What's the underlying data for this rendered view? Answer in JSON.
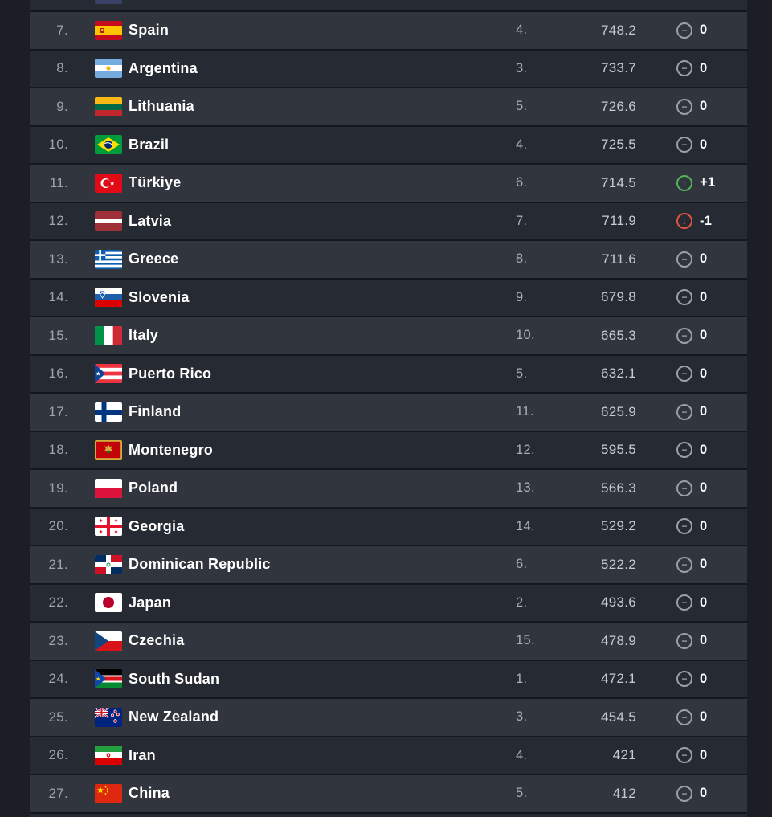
{
  "table": {
    "columns": [
      "world_rank",
      "flag",
      "country",
      "zone_rank",
      "points",
      "change"
    ],
    "change_colors": {
      "same": "#9AA0A7",
      "up": "#50B457",
      "down": "#DC5540"
    },
    "row_colors": {
      "light": "#31353E",
      "dark": "#262A32"
    },
    "partial_top_row": {
      "flag": "australia-sliver"
    },
    "rows": [
      {
        "rank": "7.",
        "flag": "spain",
        "country": "Spain",
        "zone_rank": "4.",
        "points": "748.2",
        "change": "0",
        "direction": "same"
      },
      {
        "rank": "8.",
        "flag": "argentina",
        "country": "Argentina",
        "zone_rank": "3.",
        "points": "733.7",
        "change": "0",
        "direction": "same"
      },
      {
        "rank": "9.",
        "flag": "lithuania",
        "country": "Lithuania",
        "zone_rank": "5.",
        "points": "726.6",
        "change": "0",
        "direction": "same"
      },
      {
        "rank": "10.",
        "flag": "brazil",
        "country": "Brazil",
        "zone_rank": "4.",
        "points": "725.5",
        "change": "0",
        "direction": "same"
      },
      {
        "rank": "11.",
        "flag": "turkiye",
        "country": "Türkiye",
        "zone_rank": "6.",
        "points": "714.5",
        "change": "+1",
        "direction": "up"
      },
      {
        "rank": "12.",
        "flag": "latvia",
        "country": "Latvia",
        "zone_rank": "7.",
        "points": "711.9",
        "change": "-1",
        "direction": "down"
      },
      {
        "rank": "13.",
        "flag": "greece",
        "country": "Greece",
        "zone_rank": "8.",
        "points": "711.6",
        "change": "0",
        "direction": "same"
      },
      {
        "rank": "14.",
        "flag": "slovenia",
        "country": "Slovenia",
        "zone_rank": "9.",
        "points": "679.8",
        "change": "0",
        "direction": "same"
      },
      {
        "rank": "15.",
        "flag": "italy",
        "country": "Italy",
        "zone_rank": "10.",
        "points": "665.3",
        "change": "0",
        "direction": "same"
      },
      {
        "rank": "16.",
        "flag": "puerto-rico",
        "country": "Puerto Rico",
        "zone_rank": "5.",
        "points": "632.1",
        "change": "0",
        "direction": "same"
      },
      {
        "rank": "17.",
        "flag": "finland",
        "country": "Finland",
        "zone_rank": "11.",
        "points": "625.9",
        "change": "0",
        "direction": "same"
      },
      {
        "rank": "18.",
        "flag": "montenegro",
        "country": "Montenegro",
        "zone_rank": "12.",
        "points": "595.5",
        "change": "0",
        "direction": "same"
      },
      {
        "rank": "19.",
        "flag": "poland",
        "country": "Poland",
        "zone_rank": "13.",
        "points": "566.3",
        "change": "0",
        "direction": "same"
      },
      {
        "rank": "20.",
        "flag": "georgia",
        "country": "Georgia",
        "zone_rank": "14.",
        "points": "529.2",
        "change": "0",
        "direction": "same"
      },
      {
        "rank": "21.",
        "flag": "dominican-republic",
        "country": "Dominican Republic",
        "zone_rank": "6.",
        "points": "522.2",
        "change": "0",
        "direction": "same"
      },
      {
        "rank": "22.",
        "flag": "japan",
        "country": "Japan",
        "zone_rank": "2.",
        "points": "493.6",
        "change": "0",
        "direction": "same"
      },
      {
        "rank": "23.",
        "flag": "czechia",
        "country": "Czechia",
        "zone_rank": "15.",
        "points": "478.9",
        "change": "0",
        "direction": "same"
      },
      {
        "rank": "24.",
        "flag": "south-sudan",
        "country": "South Sudan",
        "zone_rank": "1.",
        "points": "472.1",
        "change": "0",
        "direction": "same"
      },
      {
        "rank": "25.",
        "flag": "new-zealand",
        "country": "New Zealand",
        "zone_rank": "3.",
        "points": "454.5",
        "change": "0",
        "direction": "same"
      },
      {
        "rank": "26.",
        "flag": "iran",
        "country": "Iran",
        "zone_rank": "4.",
        "points": "421",
        "change": "0",
        "direction": "same"
      },
      {
        "rank": "27.",
        "flag": "china",
        "country": "China",
        "zone_rank": "5.",
        "points": "412",
        "change": "0",
        "direction": "same"
      }
    ]
  }
}
